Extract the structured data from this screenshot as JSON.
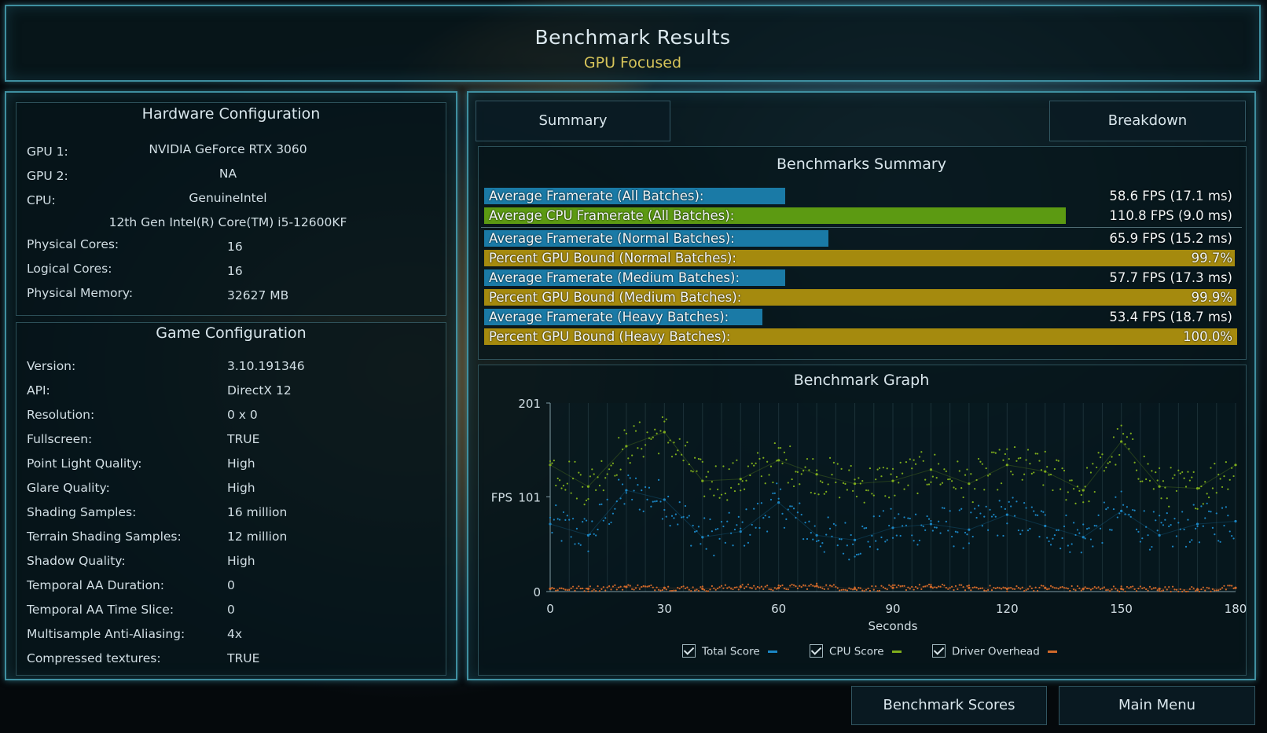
{
  "header": {
    "title": "Benchmark Results",
    "subtitle": "GPU Focused"
  },
  "hardware": {
    "title": "Hardware Configuration",
    "gpu1_label": "GPU 1:",
    "gpu1": "NVIDIA GeForce RTX 3060",
    "gpu2_label": "GPU 2:",
    "gpu2": "NA",
    "cpu_label": "CPU:",
    "cpu_vendor": "GenuineIntel",
    "cpu_model": "12th Gen Intel(R) Core(TM) i5-12600KF",
    "rows": [
      {
        "label": "Physical Cores:",
        "value": "16"
      },
      {
        "label": "Logical Cores:",
        "value": "16"
      },
      {
        "label": "Physical Memory:",
        "value": "32627  MB"
      }
    ]
  },
  "game": {
    "title": "Game Configuration",
    "rows": [
      {
        "label": "Version:",
        "value": "3.10.191346"
      },
      {
        "label": "API:",
        "value": "DirectX 12"
      },
      {
        "label": "Resolution:",
        "value": "0 x 0"
      },
      {
        "label": "Fullscreen:",
        "value": "TRUE"
      },
      {
        "label": "Point Light Quality:",
        "value": "High"
      },
      {
        "label": "Glare Quality:",
        "value": "High"
      },
      {
        "label": "Shading Samples:",
        "value": "16 million"
      },
      {
        "label": "Terrain Shading Samples:",
        "value": "12 million"
      },
      {
        "label": "Shadow Quality:",
        "value": "High"
      },
      {
        "label": "Temporal AA Duration:",
        "value": "0"
      },
      {
        "label": "Temporal AA Time Slice:",
        "value": "0"
      },
      {
        "label": "Multisample Anti-Aliasing:",
        "value": "4x"
      },
      {
        "label": "Compressed textures:",
        "value": "TRUE"
      }
    ]
  },
  "tabs": {
    "summary": "Summary",
    "breakdown": "Breakdown"
  },
  "summary": {
    "title": "Benchmarks Summary",
    "rows": [
      {
        "label": "Average Framerate (All Batches):",
        "value": "58.6 FPS (17.1 ms)",
        "fill": 0.4,
        "color": "#1a7aa6"
      },
      {
        "label": "Average CPU Framerate (All Batches):",
        "value": "110.8 FPS (9.0 ms)",
        "fill": 0.772,
        "color": "#5c9a12"
      },
      {
        "label": "Average Framerate (Normal Batches):",
        "value": "65.9 FPS (15.2 ms)",
        "fill": 0.457,
        "color": "#1a7aa6"
      },
      {
        "label": "Percent GPU Bound (Normal Batches):",
        "value": "99.7%",
        "fill": 0.997,
        "color": "#a58a0e"
      },
      {
        "label": "Average Framerate (Medium Batches):",
        "value": "57.7 FPS (17.3 ms)",
        "fill": 0.4,
        "color": "#1a7aa6"
      },
      {
        "label": "Percent GPU Bound (Medium Batches):",
        "value": "99.9%",
        "fill": 0.999,
        "color": "#a58a0e"
      },
      {
        "label": "Average Framerate (Heavy Batches):",
        "value": "53.4 FPS (18.7 ms)",
        "fill": 0.37,
        "color": "#1a7aa6"
      },
      {
        "label": "Percent GPU Bound (Heavy Batches):",
        "value": "100.0%",
        "fill": 1.0,
        "color": "#a58a0e"
      }
    ]
  },
  "graph": {
    "title": "Benchmark Graph",
    "legend": [
      {
        "label": "Total Score",
        "color": "#1b86c4"
      },
      {
        "label": "CPU Score",
        "color": "#7fae1c"
      },
      {
        "label": "Driver Overhead",
        "color": "#d0692a"
      }
    ]
  },
  "chart_data": {
    "type": "scatter",
    "title": "Benchmark Graph",
    "xlabel": "Seconds",
    "ylabel": "FPS",
    "xlim": [
      0,
      180
    ],
    "ylim": [
      0,
      201
    ],
    "x_ticks": [
      "0",
      "30",
      "60",
      "90",
      "120",
      "150",
      "180"
    ],
    "y_ticks": [
      "0",
      "101",
      "201"
    ],
    "series": [
      {
        "name": "Total Score",
        "color": "#1b86c4",
        "x": [
          0,
          10,
          20,
          30,
          40,
          50,
          60,
          70,
          80,
          90,
          100,
          110,
          120,
          130,
          140,
          150,
          160,
          170,
          180
        ],
        "y": [
          72,
          60,
          108,
          98,
          58,
          64,
          95,
          60,
          55,
          68,
          72,
          66,
          82,
          70,
          58,
          86,
          60,
          72,
          75
        ]
      },
      {
        "name": "CPU Score",
        "color": "#7fae1c",
        "x": [
          0,
          10,
          20,
          30,
          40,
          50,
          60,
          70,
          80,
          90,
          100,
          110,
          120,
          130,
          140,
          150,
          160,
          170,
          180
        ],
        "y": [
          135,
          112,
          155,
          170,
          118,
          120,
          140,
          125,
          115,
          118,
          130,
          115,
          135,
          128,
          108,
          160,
          112,
          110,
          135
        ]
      },
      {
        "name": "Driver Overhead",
        "color": "#d0692a",
        "x": [
          0,
          10,
          20,
          30,
          40,
          50,
          60,
          70,
          80,
          90,
          100,
          110,
          120,
          130,
          140,
          150,
          160,
          170,
          180
        ],
        "y": [
          3,
          3,
          5,
          4,
          3,
          5,
          4,
          6,
          3,
          4,
          5,
          4,
          3,
          4,
          3,
          3,
          3,
          2,
          4
        ]
      }
    ]
  },
  "buttons": {
    "scores": "Benchmark Scores",
    "menu": "Main Menu"
  }
}
